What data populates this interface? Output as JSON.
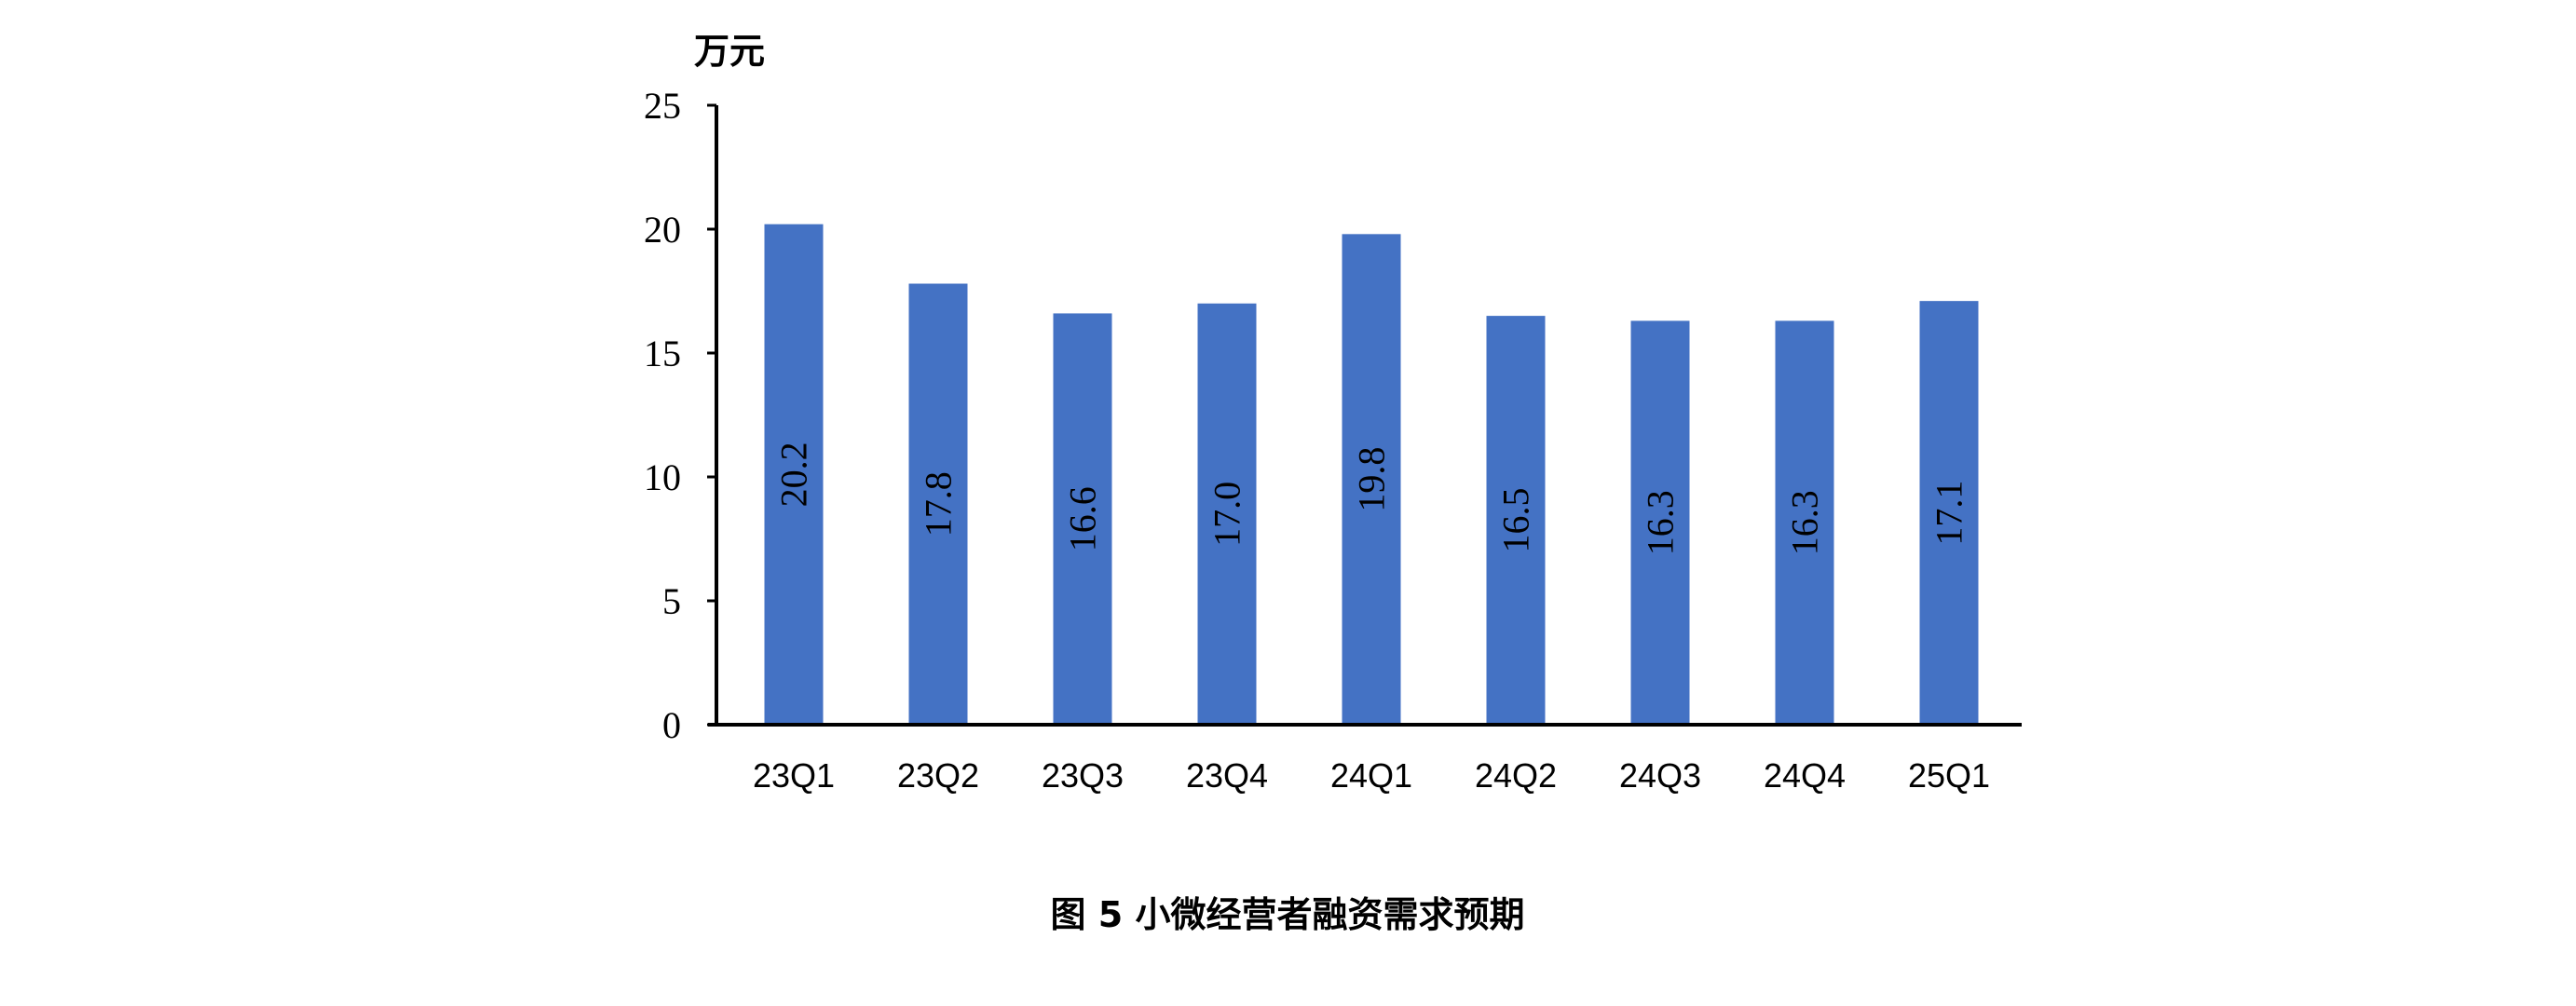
{
  "chart_data": {
    "type": "bar",
    "ylabel": "万元",
    "title": "图 5 小微经营者融资需求预期",
    "categories": [
      "23Q1",
      "23Q2",
      "23Q3",
      "23Q4",
      "24Q1",
      "24Q2",
      "24Q3",
      "24Q4",
      "25Q1"
    ],
    "values": [
      20.2,
      17.8,
      16.6,
      17.0,
      19.8,
      16.5,
      16.3,
      16.3,
      17.1
    ],
    "data_labels": [
      "20.2",
      "17.8",
      "16.6",
      "17.0",
      "19.8",
      "16.5",
      "16.3",
      "16.3",
      "17.1"
    ],
    "yticks": [
      "0",
      "5",
      "10",
      "15",
      "20",
      "25"
    ],
    "ylim": [
      0,
      25
    ],
    "grid": false,
    "legend": "none",
    "bar_color": "#4472C4",
    "data_label_orientation": "vertical"
  }
}
